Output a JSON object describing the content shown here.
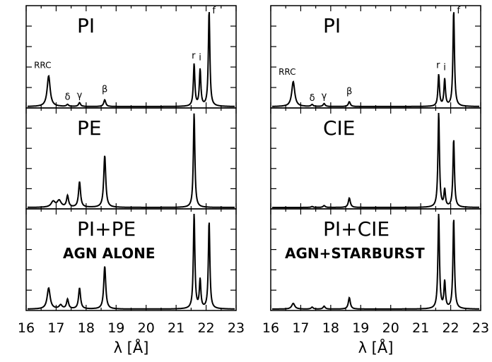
{
  "chart_data": [
    {
      "type": "line",
      "column": "left",
      "xlabel": "λ [Å]",
      "xlim": [
        16,
        23
      ],
      "x_ticks": [
        "16",
        "17",
        "18",
        "19",
        "20",
        "21",
        "22",
        "23"
      ],
      "panels": [
        {
          "label": "PI",
          "lines": [
            {
              "x": 16.75,
              "h": 0.32,
              "w": 0.06
            },
            {
              "x": 17.38,
              "h": 0.02,
              "w": 0.04
            },
            {
              "x": 17.78,
              "h": 0.04,
              "w": 0.04
            },
            {
              "x": 18.62,
              "h": 0.07,
              "w": 0.04
            },
            {
              "x": 21.6,
              "h": 0.44,
              "w": 0.03
            },
            {
              "x": 21.8,
              "h": 0.38,
              "w": 0.03
            },
            {
              "x": 22.1,
              "h": 1.0,
              "w": 0.03
            }
          ],
          "annotations": [
            {
              "text": "RRC",
              "x": 16.55,
              "y": 0.4
            },
            {
              "text": "δ",
              "x": 17.38,
              "y": 0.07
            },
            {
              "text": "γ",
              "x": 17.78,
              "y": 0.09
            },
            {
              "text": "β",
              "x": 18.62,
              "y": 0.15
            },
            {
              "text": "r",
              "x": 21.58,
              "y": 0.5
            },
            {
              "text": "i",
              "x": 21.8,
              "y": 0.48
            },
            {
              "text": "f",
              "x": 22.26,
              "y": 0.97
            }
          ]
        },
        {
          "label": "PE",
          "lines": [
            {
              "x": 16.9,
              "h": 0.06,
              "w": 0.08
            },
            {
              "x": 17.1,
              "h": 0.07,
              "w": 0.08
            },
            {
              "x": 17.38,
              "h": 0.12,
              "w": 0.04
            },
            {
              "x": 17.78,
              "h": 0.27,
              "w": 0.04
            },
            {
              "x": 18.62,
              "h": 0.55,
              "w": 0.04
            },
            {
              "x": 21.6,
              "h": 1.0,
              "w": 0.03
            }
          ],
          "annotations": []
        },
        {
          "label": "PI+PE",
          "label2": "AGN ALONE",
          "lines": [
            {
              "x": 16.75,
              "h": 0.22,
              "w": 0.06
            },
            {
              "x": 17.15,
              "h": 0.04,
              "w": 0.06
            },
            {
              "x": 17.38,
              "h": 0.1,
              "w": 0.04
            },
            {
              "x": 17.78,
              "h": 0.22,
              "w": 0.04
            },
            {
              "x": 18.62,
              "h": 0.45,
              "w": 0.04
            },
            {
              "x": 21.6,
              "h": 1.0,
              "w": 0.03
            },
            {
              "x": 21.8,
              "h": 0.3,
              "w": 0.03
            },
            {
              "x": 22.1,
              "h": 0.92,
              "w": 0.03
            }
          ],
          "annotations": []
        }
      ]
    },
    {
      "type": "line",
      "column": "right",
      "xlabel": "λ [Å]",
      "xlim": [
        16,
        23
      ],
      "x_ticks": [
        "16",
        "17",
        "18",
        "19",
        "20",
        "21",
        "22",
        "23"
      ],
      "panels": [
        {
          "label": "PI",
          "lines": [
            {
              "x": 16.75,
              "h": 0.26,
              "w": 0.06
            },
            {
              "x": 17.38,
              "h": 0.02,
              "w": 0.04
            },
            {
              "x": 17.78,
              "h": 0.03,
              "w": 0.04
            },
            {
              "x": 18.62,
              "h": 0.05,
              "w": 0.04
            },
            {
              "x": 21.6,
              "h": 0.33,
              "w": 0.03
            },
            {
              "x": 21.8,
              "h": 0.28,
              "w": 0.03
            },
            {
              "x": 22.1,
              "h": 1.0,
              "w": 0.03
            }
          ],
          "annotations": [
            {
              "text": "RRC",
              "x": 16.55,
              "y": 0.33
            },
            {
              "text": "δ",
              "x": 17.38,
              "y": 0.06
            },
            {
              "text": "γ",
              "x": 17.78,
              "y": 0.08
            },
            {
              "text": "β",
              "x": 18.62,
              "y": 0.13
            },
            {
              "text": "r",
              "x": 21.58,
              "y": 0.4
            },
            {
              "text": "i",
              "x": 21.8,
              "y": 0.38
            },
            {
              "text": "f",
              "x": 22.26,
              "y": 0.97
            }
          ]
        },
        {
          "label": "CIE",
          "lines": [
            {
              "x": 17.38,
              "h": 0.01,
              "w": 0.04
            },
            {
              "x": 17.78,
              "h": 0.02,
              "w": 0.04
            },
            {
              "x": 18.62,
              "h": 0.1,
              "w": 0.04
            },
            {
              "x": 21.6,
              "h": 1.0,
              "w": 0.03
            },
            {
              "x": 21.8,
              "h": 0.18,
              "w": 0.03
            },
            {
              "x": 22.1,
              "h": 0.72,
              "w": 0.03
            }
          ],
          "annotations": []
        },
        {
          "label": "PI+CIE",
          "label2": "AGN+STARBURST",
          "lines": [
            {
              "x": 16.75,
              "h": 0.06,
              "w": 0.06
            },
            {
              "x": 17.38,
              "h": 0.02,
              "w": 0.04
            },
            {
              "x": 17.78,
              "h": 0.03,
              "w": 0.04
            },
            {
              "x": 18.62,
              "h": 0.12,
              "w": 0.04
            },
            {
              "x": 21.6,
              "h": 1.0,
              "w": 0.03
            },
            {
              "x": 21.8,
              "h": 0.28,
              "w": 0.03
            },
            {
              "x": 22.1,
              "h": 0.95,
              "w": 0.03
            }
          ],
          "annotations": []
        }
      ]
    }
  ]
}
